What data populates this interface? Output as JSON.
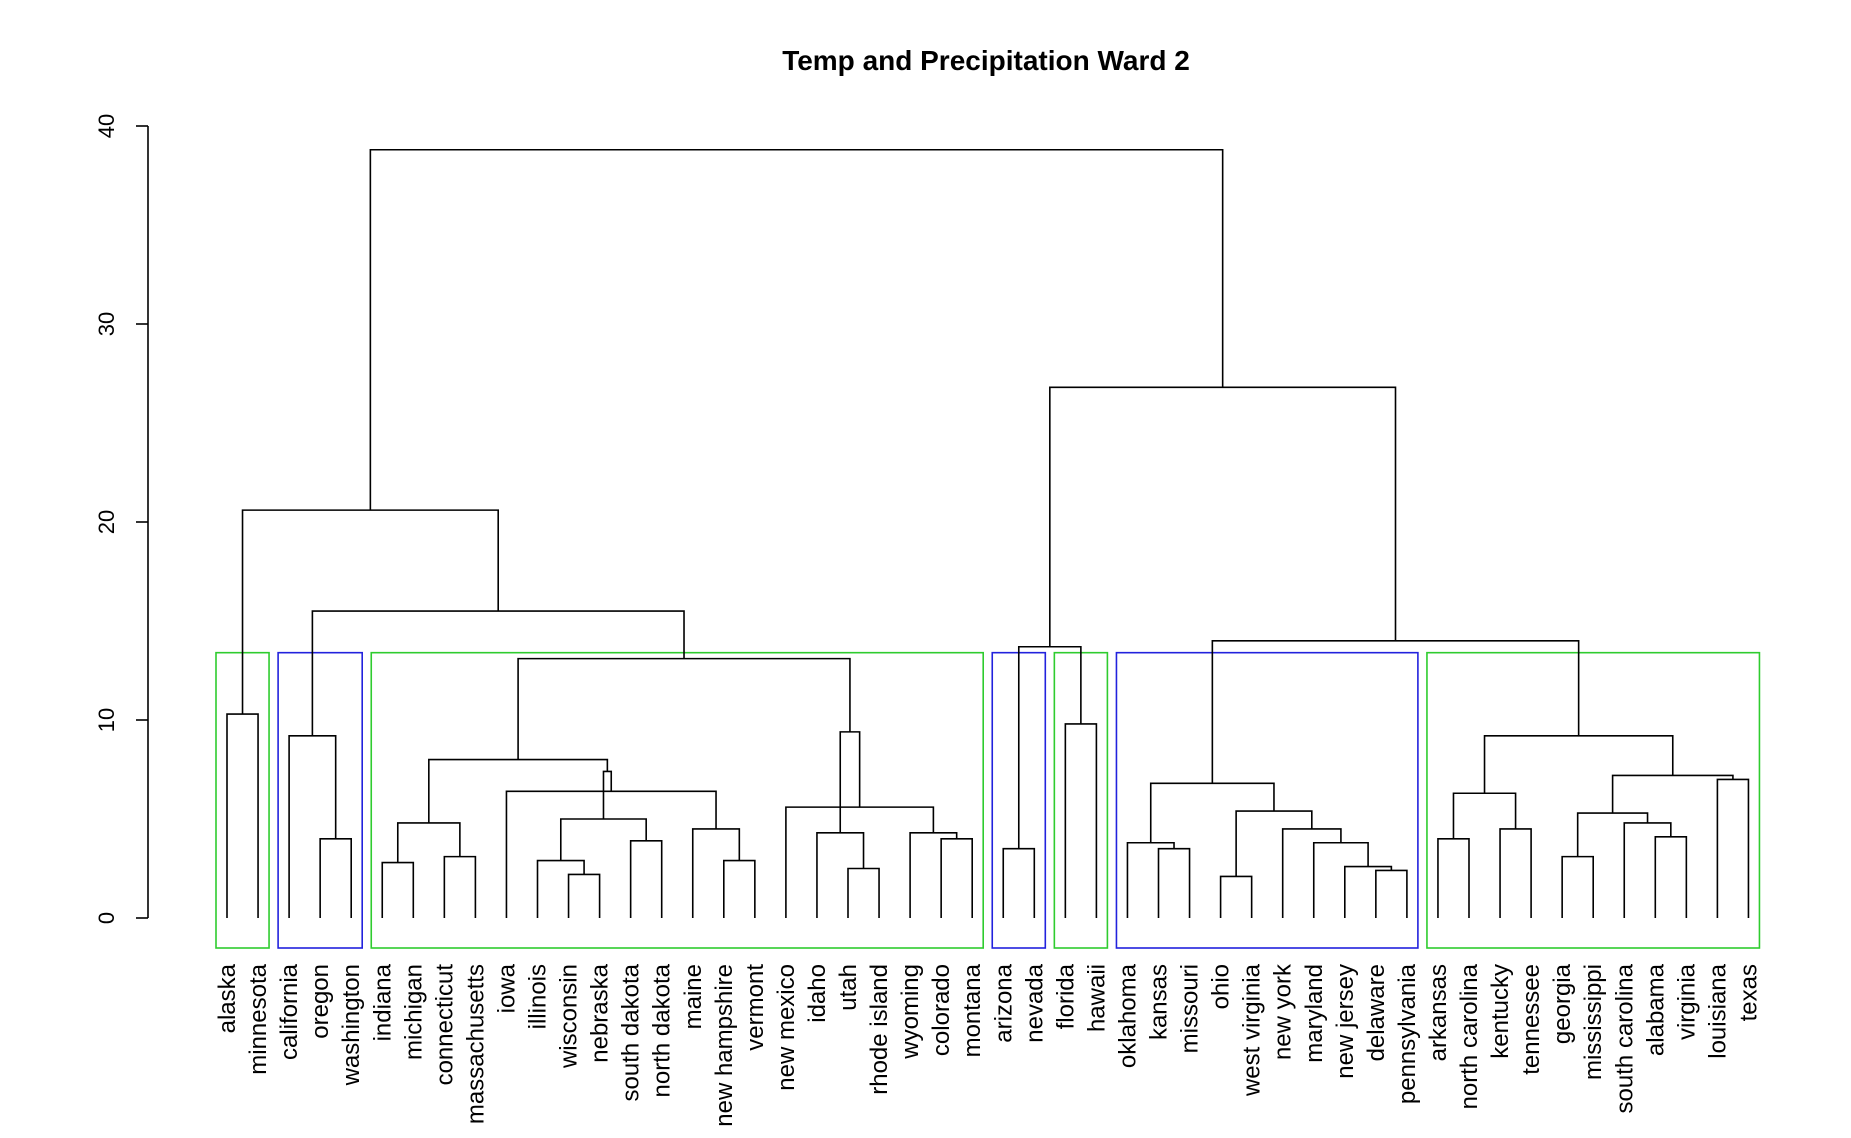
{
  "chart_data": {
    "type": "dendrogram",
    "title": "Temp and Precipitation Ward 2",
    "ylim": [
      0,
      40
    ],
    "y_ticks": [
      0,
      10,
      20,
      30,
      40
    ],
    "leaves": [
      "alaska",
      "minnesota",
      "california",
      "oregon",
      "washington",
      "indiana",
      "michigan",
      "connecticut",
      "massachusetts",
      "iowa",
      "illinois",
      "wisconsin",
      "nebraska",
      "south dakota",
      "north dakota",
      "maine",
      "new hampshire",
      "vermont",
      "new mexico",
      "idaho",
      "utah",
      "rhode island",
      "wyoming",
      "colorado",
      "montana",
      "arizona",
      "nevada",
      "florida",
      "hawaii",
      "oklahoma",
      "kansas",
      "missouri",
      "ohio",
      "west virginia",
      "new york",
      "maryland",
      "new jersey",
      "delaware",
      "pennsylvania",
      "arkansas",
      "north carolina",
      "kentucky",
      "tennessee",
      "georgia",
      "mississippi",
      "south carolina",
      "alabama",
      "virginia",
      "louisiana",
      "texas"
    ],
    "merges": [
      {
        "id": "A",
        "left": "alaska",
        "right": "minnesota",
        "height": 10.3
      },
      {
        "id": "B",
        "left": "oregon",
        "right": "washington",
        "height": 4.0
      },
      {
        "id": "C",
        "left": "california",
        "right": "B",
        "height": 9.2
      },
      {
        "id": "D",
        "left": "indiana",
        "right": "michigan",
        "height": 2.8
      },
      {
        "id": "E",
        "left": "connecticut",
        "right": "massachusetts",
        "height": 3.1
      },
      {
        "id": "F",
        "left": "D",
        "right": "E",
        "height": 4.8
      },
      {
        "id": "G",
        "left": "wisconsin",
        "right": "nebraska",
        "height": 2.2
      },
      {
        "id": "H",
        "left": "illinois",
        "right": "G",
        "height": 2.9
      },
      {
        "id": "I",
        "left": "south dakota",
        "right": "north dakota",
        "height": 3.9
      },
      {
        "id": "J",
        "left": "H",
        "right": "I",
        "height": 5.0
      },
      {
        "id": "K",
        "left": "new hampshire",
        "right": "vermont",
        "height": 2.9
      },
      {
        "id": "L",
        "left": "maine",
        "right": "K",
        "height": 4.5
      },
      {
        "id": "M",
        "left": "iowa",
        "right": "L",
        "height": 6.4
      },
      {
        "id": "N",
        "left": "J",
        "right": "M",
        "height": 7.4
      },
      {
        "id": "O",
        "left": "F",
        "right": "N",
        "height": 8.0
      },
      {
        "id": "P",
        "left": "utah",
        "right": "rhode island",
        "height": 2.5
      },
      {
        "id": "Q",
        "left": "idaho",
        "right": "P",
        "height": 4.3
      },
      {
        "id": "R",
        "left": "colorado",
        "right": "montana",
        "height": 4.0
      },
      {
        "id": "S",
        "left": "wyoming",
        "right": "R",
        "height": 4.3
      },
      {
        "id": "T",
        "left": "new mexico",
        "right": "S",
        "height": 5.6
      },
      {
        "id": "U",
        "left": "Q",
        "right": "T",
        "height": 9.4
      },
      {
        "id": "V",
        "left": "O",
        "right": "U",
        "height": 13.1
      },
      {
        "id": "W",
        "left": "C",
        "right": "V",
        "height": 15.5
      },
      {
        "id": "X",
        "left": "A",
        "right": "W",
        "height": 20.6
      },
      {
        "id": "Y",
        "left": "arizona",
        "right": "nevada",
        "height": 3.5
      },
      {
        "id": "Z",
        "left": "florida",
        "right": "hawaii",
        "height": 9.8
      },
      {
        "id": "AA",
        "left": "Y",
        "right": "Z",
        "height": 13.7
      },
      {
        "id": "AB",
        "left": "kansas",
        "right": "missouri",
        "height": 3.5
      },
      {
        "id": "AC",
        "left": "oklahoma",
        "right": "AB",
        "height": 3.8
      },
      {
        "id": "AD",
        "left": "ohio",
        "right": "west virginia",
        "height": 2.1
      },
      {
        "id": "AE",
        "left": "pennsylvania",
        "right": "delaware",
        "height": 2.4
      },
      {
        "id": "AF",
        "left": "new jersey",
        "right": "AE",
        "height": 2.6
      },
      {
        "id": "AG",
        "left": "maryland",
        "right": "AF",
        "height": 3.8
      },
      {
        "id": "AH",
        "left": "new york",
        "right": "AG",
        "height": 4.5
      },
      {
        "id": "AI",
        "left": "AD",
        "right": "AH",
        "height": 5.4
      },
      {
        "id": "AJ",
        "left": "AC",
        "right": "AI",
        "height": 6.8
      },
      {
        "id": "AK",
        "left": "arkansas",
        "right": "north carolina",
        "height": 4.0
      },
      {
        "id": "AL",
        "left": "kentucky",
        "right": "tennessee",
        "height": 4.5
      },
      {
        "id": "AM",
        "left": "AK",
        "right": "AL",
        "height": 6.3
      },
      {
        "id": "AN",
        "left": "georgia",
        "right": "mississippi",
        "height": 3.1
      },
      {
        "id": "AO",
        "left": "alabama",
        "right": "virginia",
        "height": 4.1
      },
      {
        "id": "AP",
        "left": "south carolina",
        "right": "AO",
        "height": 4.8
      },
      {
        "id": "AQ",
        "left": "AN",
        "right": "AP",
        "height": 5.3
      },
      {
        "id": "AR",
        "left": "louisiana",
        "right": "texas",
        "height": 7.0
      },
      {
        "id": "AS",
        "left": "AQ",
        "right": "AR",
        "height": 7.2
      },
      {
        "id": "AT",
        "left": "AM",
        "right": "AS",
        "height": 9.2
      },
      {
        "id": "AU",
        "left": "AJ",
        "right": "AT",
        "height": 14.0
      },
      {
        "id": "AV",
        "left": "AA",
        "right": "AU",
        "height": 26.8
      },
      {
        "id": "AW",
        "left": "X",
        "right": "AV",
        "height": 38.8
      }
    ],
    "cluster_boxes": [
      {
        "from": "alaska",
        "to": "minnesota",
        "color": "#2ecc2e"
      },
      {
        "from": "california",
        "to": "washington",
        "color": "#2222dd"
      },
      {
        "from": "indiana",
        "to": "montana",
        "color": "#2ecc2e"
      },
      {
        "from": "arizona",
        "to": "nevada",
        "color": "#2222dd"
      },
      {
        "from": "florida",
        "to": "hawaii",
        "color": "#2ecc2e"
      },
      {
        "from": "oklahoma",
        "to": "pennsylvania",
        "color": "#2222dd"
      },
      {
        "from": "arkansas",
        "to": "texas",
        "color": "#2ecc2e"
      }
    ],
    "box_cut_height": 13.4
  }
}
